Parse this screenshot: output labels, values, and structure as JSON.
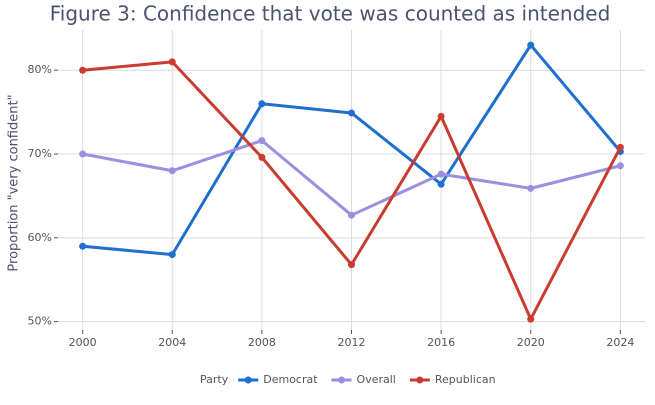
{
  "chart_data": {
    "type": "line",
    "title": "Figure 3: Confidence that vote was counted as intended",
    "y_label": "Proportion \"very confident\"",
    "legend_title": "Party",
    "legend_position": "bottom",
    "grid": true,
    "x": [
      2000,
      2004,
      2008,
      2012,
      2016,
      2020,
      2024
    ],
    "xlim": [
      1998.9,
      2025.1
    ],
    "xticks": [
      2000,
      2004,
      2008,
      2012,
      2016,
      2020,
      2024
    ],
    "ylim": [
      49,
      84.8
    ],
    "yticks": [
      {
        "value": 50,
        "label": "50%"
      },
      {
        "value": 60,
        "label": "60%"
      },
      {
        "value": 70,
        "label": "70%"
      },
      {
        "value": 80,
        "label": "80%"
      }
    ],
    "series": [
      {
        "name": "Democrat",
        "color": "#1f6fcf",
        "values": [
          59,
          58,
          76,
          74.9,
          66.4,
          83,
          70.3
        ]
      },
      {
        "name": "Overall",
        "color": "#9b8fe0",
        "values": [
          70,
          68,
          71.6,
          62.7,
          67.6,
          65.9,
          68.6
        ]
      },
      {
        "name": "Republican",
        "color": "#c93c2f",
        "values": [
          80,
          81,
          69.6,
          56.8,
          74.5,
          50.3,
          70.8
        ]
      }
    ]
  }
}
